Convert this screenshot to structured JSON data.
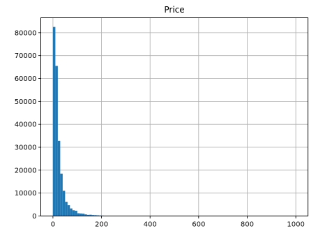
{
  "chart_data": {
    "type": "bar",
    "title": "Price",
    "xlabel": "",
    "ylabel": "",
    "bin_width": 10,
    "bin_start": 0,
    "values": [
      82500,
      65500,
      32800,
      18500,
      11000,
      6200,
      4700,
      3300,
      2500,
      2300,
      1200,
      1100,
      1000,
      700,
      500,
      550,
      400,
      350,
      280,
      220,
      180,
      150,
      120,
      100,
      90,
      80,
      70,
      60,
      50,
      40
    ],
    "xlim": [
      -50,
      1050
    ],
    "ylim": [
      0,
      86500
    ],
    "xticks": [
      0,
      200,
      400,
      600,
      800,
      1000
    ],
    "yticks": [
      0,
      10000,
      20000,
      30000,
      40000,
      50000,
      60000,
      70000,
      80000
    ],
    "grid": true,
    "bar_color": "#1f77b4",
    "grid_color": "#b0b0b0"
  }
}
